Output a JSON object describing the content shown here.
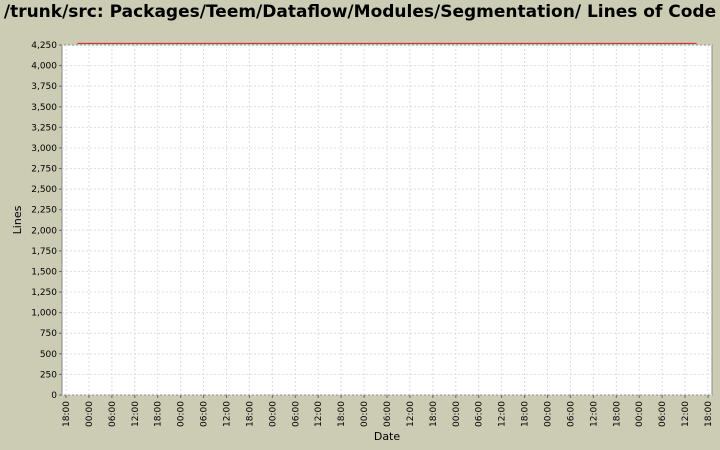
{
  "chart_data": {
    "type": "line",
    "title": "/trunk/src: Packages/Teem/Dataflow/Modules/Segmentation/ Lines of Code",
    "xlabel": "Date",
    "ylabel": "Lines",
    "ylim": [
      0,
      4250
    ],
    "y_ticks": [
      "0",
      "250",
      "500",
      "750",
      "1,000",
      "1,250",
      "1,500",
      "1,750",
      "2,000",
      "2,250",
      "2,500",
      "2,750",
      "3,000",
      "3,250",
      "3,500",
      "3,750",
      "4,000",
      "4,250"
    ],
    "x_ticks": [
      "18:00",
      "00:00",
      "06:00",
      "12:00",
      "18:00",
      "00:00",
      "06:00",
      "12:00",
      "18:00",
      "00:00",
      "06:00",
      "12:00",
      "18:00",
      "00:00",
      "06:00",
      "12:00",
      "18:00",
      "00:00",
      "06:00",
      "12:00",
      "18:00",
      "00:00",
      "06:00",
      "12:00",
      "18:00",
      "00:00",
      "06:00",
      "12:00",
      "18:00"
    ],
    "grid": true,
    "series": [
      {
        "color": "#cc3333",
        "x_range": [
          0.5,
          27.5
        ],
        "values": [
          4269,
          4269
        ]
      }
    ]
  }
}
